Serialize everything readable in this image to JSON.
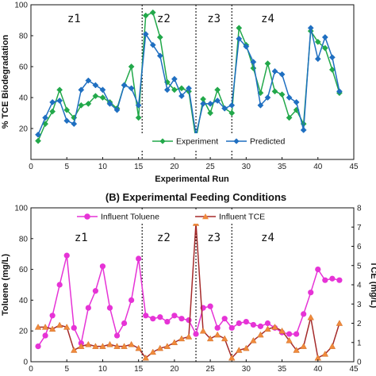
{
  "chart_data": [
    {
      "type": "line",
      "title": "",
      "xlabel": "Experimental Run",
      "ylabel": "% TCE Biodegradation",
      "xlim": [
        0,
        45
      ],
      "ylim": [
        0,
        100
      ],
      "xticks": [
        0,
        5,
        10,
        15,
        20,
        25,
        30,
        35,
        40,
        45
      ],
      "yticks": [
        20,
        40,
        60,
        80,
        100
      ],
      "legend_position": "bottom",
      "zones": [
        {
          "label": "z1",
          "x": 6
        },
        {
          "label": "z2",
          "x": 18.5
        },
        {
          "label": "z3",
          "x": 25.5
        },
        {
          "label": "z4",
          "x": 33
        }
      ],
      "dividers": [
        15.5,
        23,
        28
      ],
      "series": [
        {
          "name": "Experiment",
          "color": "#22a84a",
          "marker": "diamond",
          "x": [
            1,
            2,
            3,
            4,
            5,
            6,
            7,
            8,
            9,
            10,
            11,
            12,
            13,
            14,
            15,
            16,
            17,
            18,
            19,
            20,
            21,
            22,
            23,
            24,
            25,
            26,
            27,
            28,
            29,
            30,
            31,
            32,
            33,
            34,
            35,
            36,
            37,
            38,
            39,
            40,
            41,
            42,
            43
          ],
          "values": [
            12,
            23,
            31,
            45,
            32,
            27,
            35,
            36,
            41,
            40,
            37,
            33,
            48,
            60,
            27,
            93,
            95,
            79,
            50,
            45,
            46,
            44,
            13,
            39,
            30,
            45,
            33,
            30,
            85,
            74,
            59,
            43,
            62,
            44,
            42,
            27,
            32,
            23,
            83,
            76,
            72,
            58,
            43
          ]
        },
        {
          "name": "Predicted",
          "color": "#1f6fc1",
          "marker": "diamond",
          "x": [
            1,
            2,
            3,
            4,
            5,
            6,
            7,
            8,
            9,
            10,
            11,
            12,
            13,
            14,
            15,
            16,
            17,
            18,
            19,
            20,
            21,
            22,
            23,
            24,
            25,
            26,
            27,
            28,
            29,
            30,
            31,
            32,
            33,
            34,
            35,
            36,
            37,
            38,
            39,
            40,
            41,
            42,
            43
          ],
          "values": [
            16,
            27,
            37,
            38,
            25,
            23,
            45,
            51,
            48,
            45,
            36,
            32,
            48,
            46,
            35,
            81,
            74,
            67,
            45,
            52,
            41,
            46,
            16,
            36,
            36,
            38,
            33,
            35,
            78,
            73,
            63,
            35,
            40,
            57,
            55,
            40,
            37,
            19,
            85,
            65,
            79,
            66,
            44
          ]
        }
      ]
    },
    {
      "type": "line",
      "title": "(B) Experimental Feeding Conditions",
      "xlabel": "",
      "ylabel": "Toluene (mg/L)",
      "y2label": "TCE (mg/L)",
      "xlim": [
        0,
        45
      ],
      "ylim": [
        0,
        100
      ],
      "y2lim": [
        0,
        8
      ],
      "xticks": [
        0,
        5,
        10,
        15,
        20,
        25,
        30,
        35,
        40,
        45
      ],
      "yticks": [
        0,
        20,
        40,
        60,
        80,
        100
      ],
      "y2ticks": [
        0,
        1,
        2,
        3,
        4,
        5,
        6,
        7,
        8
      ],
      "legend_position": "top",
      "zones": [
        {
          "label": "z1",
          "x": 7
        },
        {
          "label": "z2",
          "x": 18.5
        },
        {
          "label": "z3",
          "x": 25.5
        },
        {
          "label": "z4",
          "x": 33
        }
      ],
      "dividers": [
        15.5,
        23,
        28
      ],
      "series": [
        {
          "name": "Influent Toluene",
          "axis": "left",
          "color": "#e633d6",
          "marker": "circle",
          "x": [
            1,
            2,
            3,
            4,
            5,
            6,
            7,
            8,
            9,
            10,
            11,
            12,
            13,
            14,
            15,
            16,
            17,
            18,
            19,
            20,
            21,
            22,
            23,
            24,
            25,
            26,
            27,
            28,
            29,
            30,
            31,
            32,
            33,
            34,
            35,
            36,
            37,
            38,
            39,
            40,
            41,
            42,
            43
          ],
          "values": [
            10,
            17,
            30,
            50,
            69,
            22,
            12,
            35,
            46,
            62,
            35,
            17,
            25,
            40,
            67,
            30,
            28,
            29,
            26,
            30,
            28,
            27,
            18,
            35,
            36,
            22,
            28,
            22,
            25,
            26,
            24,
            23,
            25,
            22,
            19,
            18,
            18,
            31,
            45,
            60,
            53,
            54,
            53
          ]
        },
        {
          "name": "Influent TCE",
          "axis": "right",
          "color": "#a52a2a",
          "marker_color": "#f08a3c",
          "marker": "triangle",
          "x": [
            1,
            2,
            3,
            4,
            5,
            6,
            7,
            8,
            9,
            10,
            11,
            12,
            13,
            14,
            15,
            16,
            17,
            18,
            19,
            20,
            21,
            22,
            23,
            24,
            25,
            26,
            27,
            28,
            29,
            30,
            31,
            32,
            33,
            34,
            35,
            36,
            37,
            38,
            39,
            40,
            41,
            42,
            43
          ],
          "values": [
            1.8,
            1.8,
            1.7,
            1.9,
            1.8,
            0.6,
            0.8,
            0.9,
            0.8,
            0.8,
            0.9,
            0.8,
            0.8,
            0.9,
            0.7,
            0.2,
            0.5,
            0.7,
            0.8,
            1.0,
            1.2,
            1.3,
            7.2,
            1.6,
            1.2,
            1.4,
            1.2,
            0.2,
            0.6,
            0.7,
            1.1,
            1.4,
            1.7,
            1.8,
            1.6,
            1.1,
            0.6,
            0.8,
            2.3,
            0.2,
            0.4,
            0.8,
            2.0
          ]
        }
      ]
    }
  ]
}
